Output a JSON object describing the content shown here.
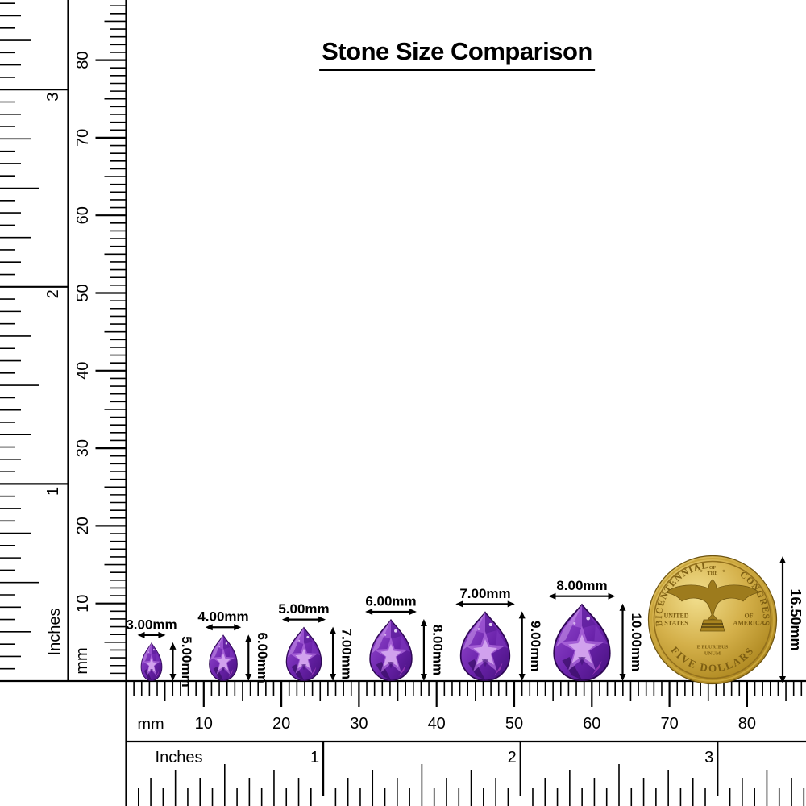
{
  "title": "Stone Size Comparison",
  "left_ruler": {
    "inches_label": "Inches",
    "mm_label": "mm",
    "inch_numbers": [
      "1",
      "2",
      "3"
    ],
    "mm_numbers": [
      "10",
      "20",
      "30",
      "40",
      "50",
      "60",
      "70",
      "80"
    ]
  },
  "bottom_ruler": {
    "inches_label": "Inches",
    "mm_label": "mm",
    "inch_numbers": [
      "1",
      "2",
      "3"
    ],
    "mm_numbers": [
      "10",
      "20",
      "30",
      "40",
      "50",
      "60",
      "70",
      "80"
    ]
  },
  "stones": [
    {
      "width_label": "3.00mm",
      "height_label": "5.00mm",
      "width_mm": 3,
      "height_mm": 5
    },
    {
      "width_label": "4.00mm",
      "height_label": "6.00mm",
      "width_mm": 4,
      "height_mm": 6
    },
    {
      "width_label": "5.00mm",
      "height_label": "7.00mm",
      "width_mm": 5,
      "height_mm": 7
    },
    {
      "width_label": "6.00mm",
      "height_label": "8.00mm",
      "width_mm": 6,
      "height_mm": 8
    },
    {
      "width_label": "7.00mm",
      "height_label": "9.00mm",
      "width_mm": 7,
      "height_mm": 9
    },
    {
      "width_label": "8.00mm",
      "height_label": "10.00mm",
      "width_mm": 8,
      "height_mm": 10
    }
  ],
  "coin": {
    "height_label": "16.50mm",
    "diameter_mm": 16.5,
    "inscriptions": {
      "top_left": "BICENTENNIAL",
      "top_center_line1": "OF",
      "top_center_line2": "THE",
      "top_right": "CONGRESS",
      "left_line1": "UNITED",
      "left_line2": "STATES",
      "right_line1": "OF",
      "right_line2": "AMERICA",
      "motto_line1": "E PLURIBUS",
      "motto_line2": "UNUM",
      "bottom": "FIVE DOLLARS"
    }
  },
  "colors": {
    "line": "#000000",
    "stone_light": "#b672e2",
    "stone_main": "#6b23ab",
    "stone_dark": "#45107c",
    "stone_highlight": "#d9aef2",
    "stone_magenta": "#c44fd2",
    "coin_gold_light": "#f2df8e",
    "coin_gold": "#d4b04a",
    "coin_gold_dark": "#8f6c14",
    "coin_text": "#7d5e12"
  }
}
